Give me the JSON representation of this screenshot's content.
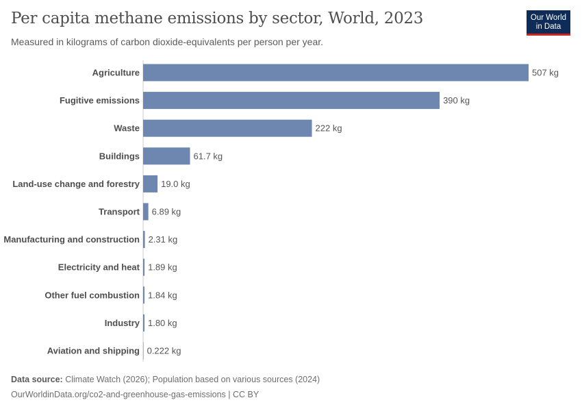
{
  "header": {
    "title": "Per capita methane emissions by sector, World, 2023",
    "subtitle": "Measured in kilograms of carbon dioxide-equivalents per person per year.",
    "logo_line1": "Our World",
    "logo_line2": "in Data"
  },
  "footer": {
    "source_label": "Data source:",
    "source_text": "Climate Watch (2026); Population based on various sources (2024)",
    "url_line": "OurWorldinData.org/co2-and-greenhouse-gas-emissions | CC BY"
  },
  "chart_data": {
    "type": "bar",
    "orientation": "horizontal",
    "title": "Per capita methane emissions by sector, World, 2023",
    "unit": "kg",
    "bar_color": "#6d87b0",
    "categories": [
      "Agriculture",
      "Fugitive emissions",
      "Waste",
      "Buildings",
      "Land-use change and forestry",
      "Transport",
      "Manufacturing and construction",
      "Electricity and heat",
      "Other fuel combustion",
      "Industry",
      "Aviation and shipping"
    ],
    "values": [
      507,
      390,
      222,
      61.7,
      19.0,
      6.89,
      2.31,
      1.89,
      1.84,
      1.8,
      0.222
    ],
    "data_labels": [
      "507 kg",
      "390 kg",
      "222 kg",
      "61.7 kg",
      "19.0 kg",
      "6.89 kg",
      "2.31 kg",
      "1.89 kg",
      "1.84 kg",
      "1.80 kg",
      "0.222 kg"
    ]
  }
}
